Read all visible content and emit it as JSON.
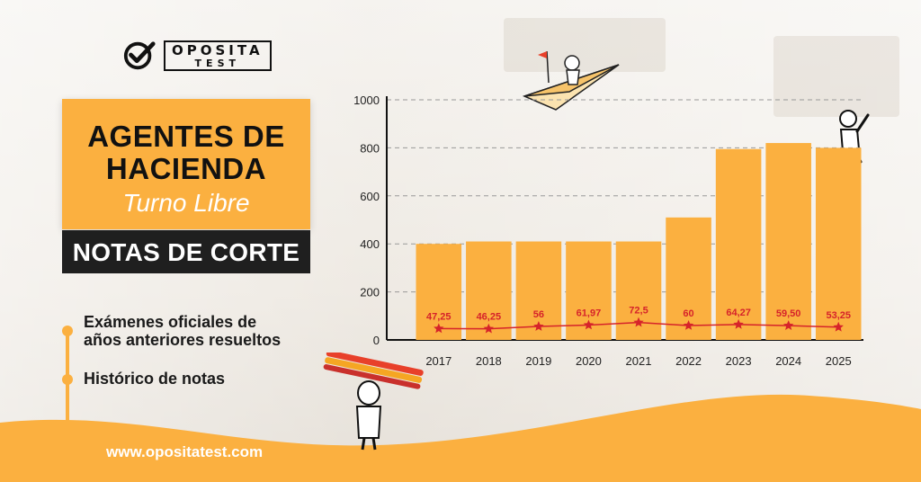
{
  "brand": {
    "logo_line1": "OPOSITA",
    "logo_line2": "TEST",
    "url": "www.opositatest.com"
  },
  "title": {
    "line1": "AGENTES DE",
    "line2": "HACIENDA",
    "subtitle": "Turno Libre",
    "band": "NOTAS DE CORTE"
  },
  "features": [
    "Exámenes oficiales de",
    "años anteriores resueltos",
    "Histórico de notas"
  ],
  "colors": {
    "accent": "#fbb040",
    "bar": "#fbb040",
    "line": "#d6232a",
    "dark": "#1f1f1f"
  },
  "chart_data": {
    "type": "bar",
    "categories": [
      "2017",
      "2018",
      "2019",
      "2020",
      "2021",
      "2022",
      "2023",
      "2024",
      "2025"
    ],
    "series": [
      {
        "values": [
          400,
          410,
          410,
          410,
          410,
          510,
          795,
          820,
          800
        ]
      }
    ],
    "line_series": {
      "values": [
        47.25,
        46.25,
        56,
        61.97,
        72.5,
        60,
        64.27,
        59.5,
        53.25
      ],
      "labels": [
        "47,25",
        "46,25",
        "56",
        "61,97",
        "72,5",
        "60",
        "64,27",
        "59,50",
        "53,25"
      ]
    },
    "y_ticks": [
      "0",
      "200",
      "400",
      "600",
      "800",
      "1000"
    ],
    "ylim": [
      0,
      1000
    ],
    "grid": true,
    "title": "",
    "xlabel": "",
    "ylabel": ""
  }
}
